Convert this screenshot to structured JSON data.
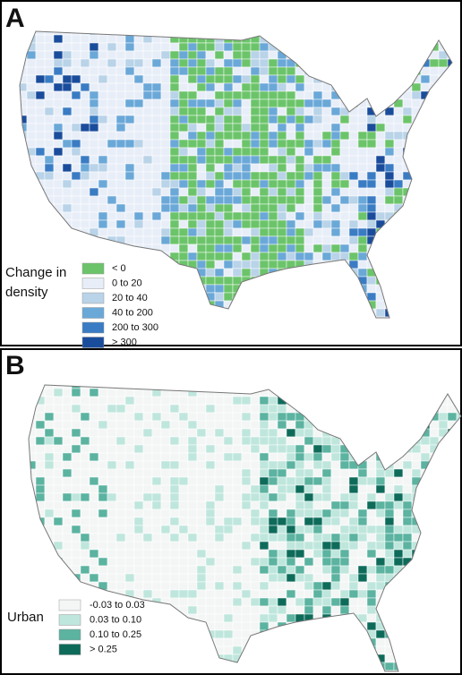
{
  "panels": [
    {
      "label": "A",
      "legend": {
        "title": [
          "Change in",
          "density"
        ],
        "items": [
          {
            "label": "< 0",
            "color": "#6cc46a"
          },
          {
            "label": "0 to 20",
            "color": "#e8eef8"
          },
          {
            "label": "20 to 40",
            "color": "#b9d3e8"
          },
          {
            "label": "40 to 200",
            "color": "#6aa8d8"
          },
          {
            "label": "200 to 300",
            "color": "#3a7cc4"
          },
          {
            "label": "> 300",
            "color": "#1a4c9c"
          }
        ]
      }
    },
    {
      "label": "B",
      "legend": {
        "title": [
          "Urban"
        ],
        "items": [
          {
            "label": "-0.03 to 0.03",
            "color": "#f4f6f6"
          },
          {
            "label": "0.03 to 0.10",
            "color": "#bfe6dc"
          },
          {
            "label": "0.10 to 0.25",
            "color": "#5bb3a0"
          },
          {
            "label": "> 0.25",
            "color": "#0e6b5a"
          }
        ]
      }
    }
  ]
}
